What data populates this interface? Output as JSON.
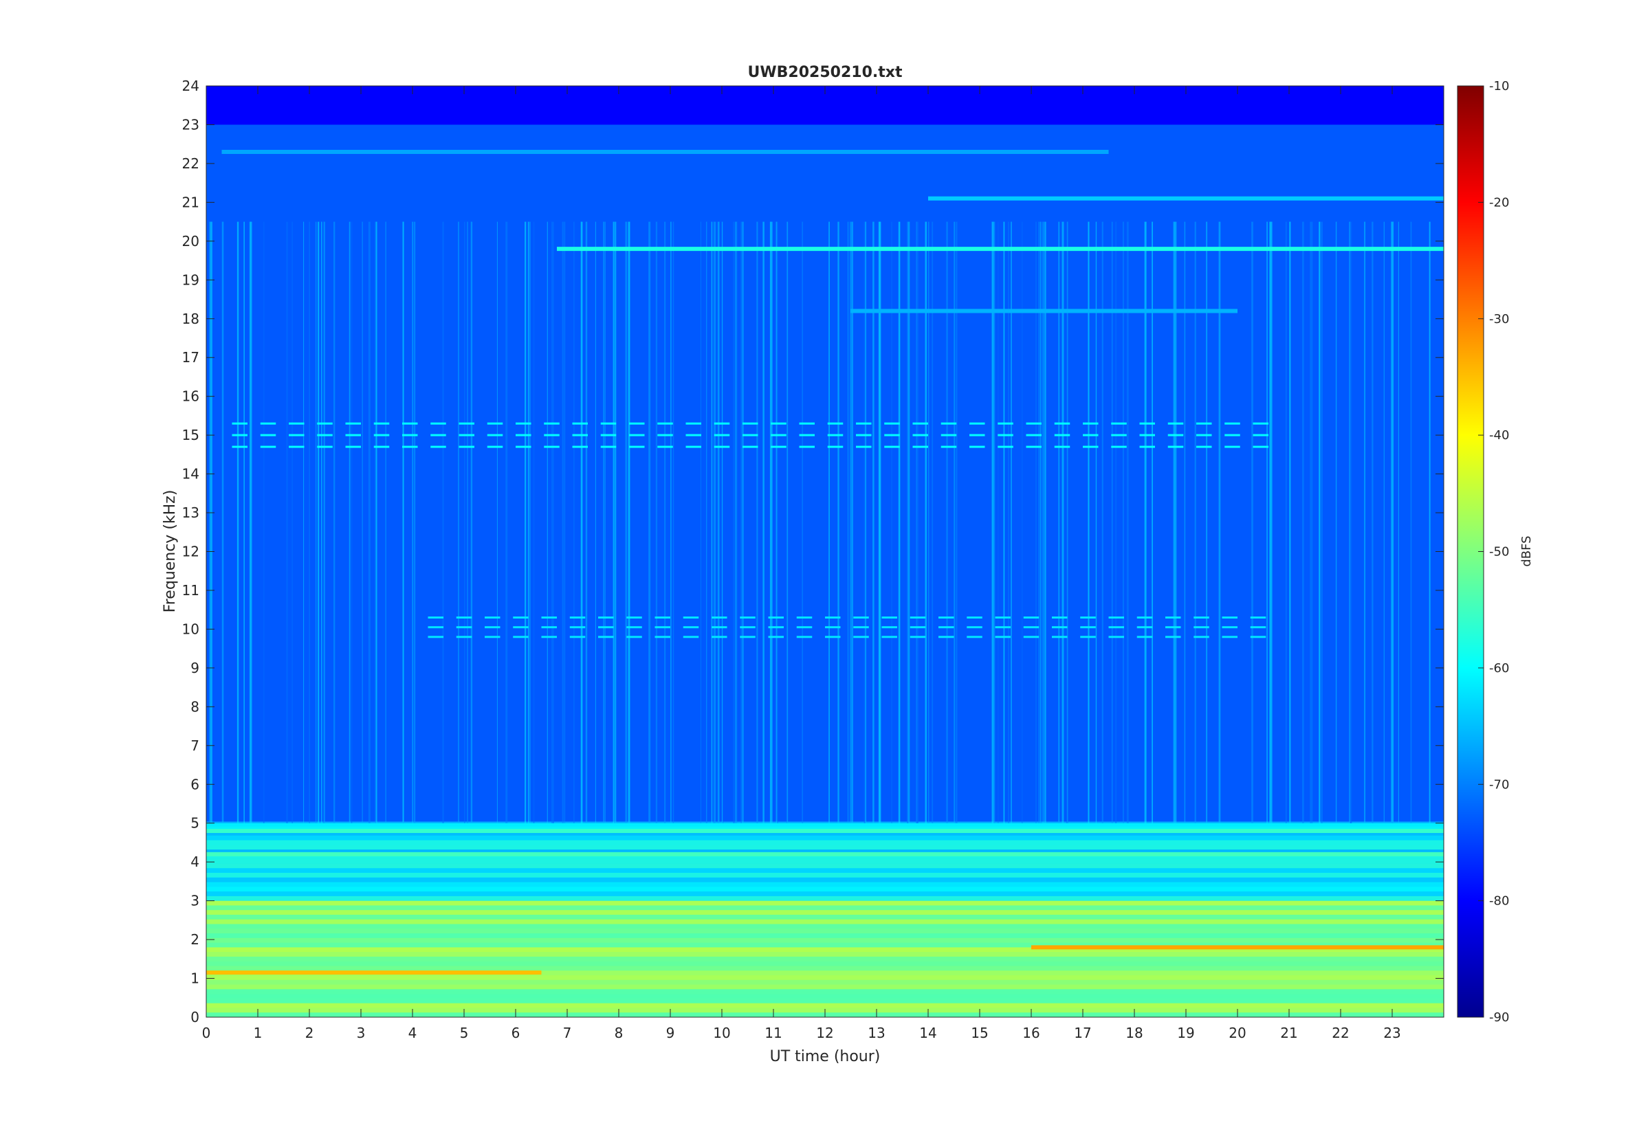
{
  "chart_data": {
    "type": "heatmap",
    "title": "UWB20250210.txt",
    "xlabel": "UT time (hour)",
    "ylabel": "Frequency (kHz)",
    "xlim": [
      0,
      24
    ],
    "ylim": [
      0,
      24
    ],
    "x_ticks": [
      "0",
      "1",
      "2",
      "3",
      "4",
      "5",
      "6",
      "7",
      "8",
      "9",
      "10",
      "11",
      "12",
      "13",
      "14",
      "15",
      "16",
      "17",
      "18",
      "19",
      "20",
      "21",
      "22",
      "23"
    ],
    "y_ticks": [
      "0",
      "1",
      "2",
      "3",
      "4",
      "5",
      "6",
      "7",
      "8",
      "9",
      "10",
      "11",
      "12",
      "13",
      "14",
      "15",
      "16",
      "17",
      "18",
      "19",
      "20",
      "21",
      "22",
      "23",
      "24"
    ],
    "colorbar": {
      "label": "dBFS",
      "range": [
        -90,
        -10
      ],
      "ticks": [
        "-10",
        "-20",
        "-30",
        "-40",
        "-50",
        "-60",
        "-70",
        "-80",
        "-90"
      ],
      "colormap": "jet"
    },
    "background_level_dBFS": {
      "above_5kHz": -73,
      "from_3_to_5kHz": -62,
      "from_1_to_3kHz": -50,
      "top_band": -80
    },
    "horizontal_lines": [
      {
        "freq_khz": 19.8,
        "t_start": 6.8,
        "t_end": 24,
        "dBFS": -58
      },
      {
        "freq_khz": 18.2,
        "t_start": 12.5,
        "t_end": 20,
        "dBFS": -66
      },
      {
        "freq_khz": 21.1,
        "t_start": 14,
        "t_end": 24,
        "dBFS": -64
      },
      {
        "freq_khz": 22.3,
        "t_start": 0.3,
        "t_end": 17.5,
        "dBFS": -67
      },
      {
        "freq_khz": 1.15,
        "t_start": 0,
        "t_end": 6.5,
        "dBFS": -35
      },
      {
        "freq_khz": 1.8,
        "t_start": 16,
        "t_end": 24,
        "dBFS": -33
      },
      {
        "freq_khz": 4.2,
        "t_start": 0,
        "t_end": 24,
        "dBFS": -55
      },
      {
        "freq_khz": 4.8,
        "t_start": 0,
        "t_end": 24,
        "dBFS": -56
      }
    ],
    "pulsed_bands": [
      {
        "freq_khz": [
          14.7,
          15.3
        ],
        "t_start": 0.5,
        "t_end": 20.5,
        "dBFS": -60
      },
      {
        "freq_khz": [
          9.8,
          10.3
        ],
        "t_start": 4.3,
        "t_end": 20.5,
        "dBFS": -62
      }
    ]
  }
}
